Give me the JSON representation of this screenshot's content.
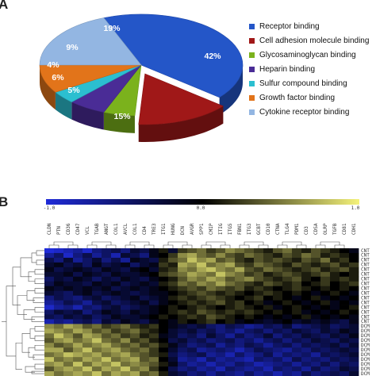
{
  "panels": {
    "a": "A",
    "b": "B"
  },
  "chart_data": [
    {
      "type": "pie",
      "title": "",
      "slices": [
        {
          "label": "Receptor binding",
          "value": 42,
          "pct_label": "42%",
          "color": "#2456c8"
        },
        {
          "label": "Cell adhesion molecule binding",
          "value": 15,
          "pct_label": "15%",
          "color": "#a01818"
        },
        {
          "label": "Glycosaminoglycan binding",
          "value": 5,
          "pct_label": "5%",
          "color": "#7bb21c"
        },
        {
          "label": "Heparin binding",
          "value": 6,
          "pct_label": "6%",
          "color": "#4a2c96"
        },
        {
          "label": "Sulfur compound binding",
          "value": 4,
          "pct_label": "4%",
          "color": "#2bbfd0"
        },
        {
          "label": "Growth factor binding",
          "value": 9,
          "pct_label": "9%",
          "color": "#e2741a"
        },
        {
          "label": "Cytokine receptor binding",
          "value": 19,
          "pct_label": "19%",
          "color": "#93b6e2"
        }
      ],
      "legend_position": "right"
    },
    {
      "type": "heatmap",
      "colorbar": {
        "ticks": [
          "-1.0",
          "0.0",
          "1.0"
        ],
        "colors": [
          "#1f2bd8",
          "#000000",
          "#f4f27a"
        ]
      },
      "columns": [
        "CLDN",
        "PTN",
        "CD36",
        "CD47",
        "VCL",
        "TGAB",
        "ANGT",
        "COL1",
        "AVCL",
        "COL1",
        "CD4",
        "TRE3",
        "ITG1",
        "HUNG",
        "DCN",
        "AVGR",
        "SPP1",
        "CMIP",
        "ITIG",
        "ITG5",
        "FBN1",
        "ITG3",
        "GCBT",
        "CD10",
        "CTNA",
        "TLG4",
        "PDM1",
        "CD3",
        "CDSA",
        "OLRP",
        "TGFB",
        "CD81",
        "CDH1"
      ],
      "row_groups": [
        "CNT",
        "CNT",
        "CNT",
        "CNT",
        "CNT",
        "CNT",
        "CNT",
        "CNT",
        "CNT",
        "CNT",
        "CNT",
        "CNT",
        "CNT",
        "CNT",
        "CNT",
        "CNT",
        "DCM",
        "DCM",
        "DCM",
        "DCM",
        "DCM",
        "DCM",
        "DCM",
        "DCM",
        "DCM",
        "DCM",
        "DCM"
      ],
      "values": [
        [
          -0.9,
          -0.8,
          -0.7,
          -0.6,
          -0.8,
          -0.5,
          -0.4,
          -0.3,
          -0.5,
          -0.2,
          -0.3,
          -0.1,
          0.1,
          -0.2,
          0.2,
          0.3,
          0.4,
          0.2,
          0.3,
          0.5,
          0.4,
          0.3,
          0.2,
          0.1,
          0.3,
          0.4,
          0.2,
          0.1,
          0.3,
          0.2,
          0.1,
          0.0,
          -0.1
        ],
        [
          -0.6,
          -0.4,
          -0.8,
          -0.5,
          -0.3,
          -0.6,
          -0.4,
          -0.7,
          -0.2,
          -0.3,
          -0.5,
          -0.1,
          0.0,
          0.2,
          0.5,
          0.6,
          0.4,
          0.3,
          0.5,
          0.3,
          0.2,
          0.4,
          0.3,
          0.2,
          0.1,
          0.3,
          0.2,
          0.4,
          0.3,
          0.1,
          0.2,
          0.1,
          0.0
        ],
        [
          -0.3,
          -0.5,
          -0.2,
          -0.6,
          -0.4,
          -0.2,
          -0.5,
          -0.3,
          -0.6,
          -0.1,
          -0.2,
          -0.3,
          0.1,
          0.3,
          0.4,
          0.7,
          0.5,
          0.6,
          0.3,
          0.4,
          0.2,
          0.1,
          0.3,
          0.2,
          0.3,
          0.2,
          0.1,
          0.3,
          0.2,
          0.4,
          0.1,
          0.2,
          0.0
        ],
        [
          -0.2,
          -0.1,
          -0.3,
          -0.2,
          -0.4,
          -0.1,
          -0.3,
          -0.2,
          -0.1,
          -0.4,
          -0.2,
          -0.1,
          0.2,
          0.1,
          0.6,
          0.5,
          0.7,
          0.4,
          0.5,
          0.6,
          0.3,
          0.2,
          0.4,
          0.3,
          0.2,
          0.1,
          0.3,
          0.2,
          0.1,
          0.2,
          0.3,
          0.1,
          0.2
        ],
        [
          -0.1,
          -0.3,
          -0.2,
          -0.1,
          -0.2,
          -0.3,
          -0.1,
          -0.2,
          -0.3,
          -0.1,
          0.0,
          -0.2,
          0.1,
          0.2,
          0.5,
          0.4,
          0.6,
          0.7,
          0.5,
          0.4,
          0.6,
          0.3,
          0.2,
          0.4,
          0.3,
          0.2,
          0.1,
          0.2,
          0.3,
          0.1,
          0.2,
          0.3,
          0.1
        ],
        [
          -0.2,
          -0.2,
          -0.1,
          -0.3,
          -0.1,
          -0.2,
          -0.3,
          -0.1,
          -0.2,
          -0.2,
          -0.1,
          0.0,
          0.2,
          0.3,
          0.4,
          0.6,
          0.5,
          0.4,
          0.7,
          0.5,
          0.4,
          0.2,
          0.3,
          0.1,
          0.2,
          0.3,
          0.2,
          0.1,
          0.2,
          0.3,
          0.1,
          0.0,
          0.1
        ],
        [
          -0.4,
          -0.2,
          -0.3,
          -0.1,
          -0.2,
          -0.4,
          -0.2,
          -0.3,
          -0.1,
          -0.2,
          -0.3,
          -0.1,
          0.0,
          0.1,
          0.3,
          0.5,
          0.4,
          0.6,
          0.5,
          0.3,
          0.4,
          0.5,
          0.3,
          0.2,
          0.1,
          0.2,
          0.3,
          0.1,
          0.0,
          0.2,
          0.1,
          0.2,
          0.1
        ],
        [
          -0.3,
          -0.1,
          -0.2,
          -0.2,
          -0.3,
          -0.1,
          -0.2,
          -0.1,
          -0.3,
          -0.2,
          -0.1,
          -0.2,
          0.1,
          0.2,
          0.4,
          0.3,
          0.5,
          0.4,
          0.6,
          0.4,
          0.3,
          0.2,
          0.1,
          0.3,
          0.2,
          0.1,
          0.2,
          0.0,
          0.1,
          0.2,
          0.0,
          0.1,
          0.2
        ],
        [
          -0.1,
          -0.2,
          -0.1,
          -0.2,
          -0.1,
          -0.2,
          -0.1,
          -0.3,
          -0.2,
          -0.1,
          -0.2,
          -0.1,
          0.0,
          0.1,
          0.2,
          0.3,
          0.2,
          0.4,
          0.3,
          0.2,
          0.3,
          0.1,
          0.2,
          0.1,
          0.0,
          0.1,
          0.2,
          0.1,
          0.0,
          0.1,
          0.0,
          0.1,
          0.0
        ],
        [
          -0.2,
          -0.3,
          -0.4,
          -0.2,
          -0.1,
          -0.3,
          -0.2,
          -0.1,
          -0.2,
          -0.3,
          -0.2,
          -0.1,
          -0.1,
          0.0,
          0.1,
          0.2,
          0.3,
          0.2,
          0.1,
          0.2,
          0.1,
          0.0,
          0.1,
          0.2,
          0.1,
          0.0,
          0.1,
          0.0,
          -0.1,
          0.0,
          0.1,
          0.0,
          -0.1
        ],
        [
          -0.5,
          -0.3,
          -0.4,
          -0.5,
          -0.3,
          -0.2,
          -0.4,
          -0.3,
          -0.2,
          -0.1,
          -0.3,
          -0.2,
          -0.1,
          0.1,
          0.2,
          0.1,
          0.2,
          0.3,
          0.2,
          0.1,
          0.0,
          0.1,
          0.2,
          0.0,
          0.1,
          0.0,
          -0.1,
          0.0,
          0.1,
          -0.1,
          0.0,
          -0.1,
          0.0
        ],
        [
          -0.6,
          -0.5,
          -0.3,
          -0.4,
          -0.6,
          -0.3,
          -0.2,
          -0.4,
          -0.3,
          -0.2,
          -0.1,
          -0.3,
          -0.1,
          0.0,
          0.1,
          0.2,
          0.1,
          0.2,
          0.3,
          0.1,
          0.2,
          0.0,
          0.1,
          -0.1,
          0.0,
          0.1,
          0.0,
          -0.1,
          0.0,
          0.1,
          -0.1,
          0.0,
          -0.1
        ],
        [
          -0.8,
          -0.6,
          -0.5,
          -0.7,
          -0.4,
          -0.5,
          -0.3,
          -0.2,
          -0.4,
          -0.3,
          -0.2,
          -0.1,
          0.0,
          0.1,
          0.0,
          0.1,
          0.2,
          0.1,
          0.0,
          0.1,
          0.2,
          0.1,
          0.0,
          0.1,
          -0.1,
          0.0,
          0.1,
          0.0,
          -0.1,
          0.0,
          -0.1,
          0.0,
          0.1
        ],
        [
          -0.4,
          -0.2,
          -0.3,
          -0.2,
          -0.5,
          -0.3,
          -0.1,
          -0.2,
          -0.3,
          -0.1,
          -0.2,
          -0.1,
          0.0,
          0.1,
          0.2,
          0.1,
          0.3,
          0.2,
          0.1,
          0.2,
          0.1,
          0.2,
          0.1,
          0.0,
          0.1,
          0.0,
          0.1,
          -0.1,
          0.0,
          -0.1,
          0.0,
          0.1,
          0.0
        ],
        [
          -0.3,
          -0.4,
          -0.2,
          -0.3,
          -0.2,
          -0.4,
          -0.3,
          -0.1,
          -0.2,
          -0.2,
          -0.1,
          0.0,
          0.1,
          0.0,
          0.1,
          0.2,
          0.1,
          0.3,
          0.2,
          0.1,
          0.0,
          0.1,
          0.0,
          -0.1,
          0.0,
          -0.1,
          0.0,
          0.1,
          -0.1,
          0.0,
          -0.1,
          0.0,
          -0.1
        ],
        [
          -0.7,
          -0.5,
          -0.6,
          -0.4,
          -0.3,
          -0.5,
          -0.2,
          -0.3,
          -0.1,
          -0.2,
          -0.3,
          -0.1,
          0.0,
          -0.1,
          0.1,
          0.0,
          0.1,
          0.2,
          0.0,
          0.1,
          -0.1,
          0.0,
          -0.1,
          -0.2,
          -0.1,
          0.0,
          -0.2,
          -0.1,
          -0.2,
          -0.1,
          -0.2,
          -0.3,
          -0.1
        ],
        [
          0.5,
          0.4,
          0.6,
          0.5,
          0.3,
          0.4,
          0.2,
          0.3,
          0.4,
          0.2,
          0.1,
          0.2,
          0.0,
          -0.1,
          -0.2,
          -0.3,
          -0.2,
          -0.4,
          -0.5,
          -0.3,
          -0.4,
          -0.6,
          -0.5,
          -0.3,
          -0.4,
          -0.2,
          -0.5,
          -0.4,
          -0.3,
          -0.2,
          -0.4,
          -0.3,
          -0.2
        ],
        [
          0.6,
          0.5,
          0.4,
          0.6,
          0.5,
          0.3,
          0.4,
          0.2,
          0.3,
          0.4,
          0.2,
          0.1,
          0.0,
          -0.2,
          -0.3,
          -0.2,
          -0.4,
          -0.3,
          -0.5,
          -0.4,
          -0.6,
          -0.4,
          -0.3,
          -0.5,
          -0.3,
          -0.4,
          -0.2,
          -0.3,
          -0.4,
          -0.2,
          -0.3,
          -0.1,
          -0.2
        ],
        [
          0.4,
          0.7,
          0.5,
          0.3,
          0.6,
          0.5,
          0.3,
          0.4,
          0.2,
          0.3,
          0.1,
          0.2,
          -0.1,
          -0.2,
          -0.4,
          -0.3,
          -0.5,
          -0.2,
          -0.4,
          -0.6,
          -0.3,
          -0.5,
          -0.4,
          -0.2,
          -0.5,
          -0.3,
          -0.4,
          -0.2,
          -0.3,
          -0.4,
          -0.2,
          -0.3,
          -0.1
        ],
        [
          0.3,
          0.5,
          0.6,
          0.4,
          0.5,
          0.7,
          0.4,
          0.3,
          0.5,
          0.2,
          0.3,
          0.1,
          0.0,
          -0.3,
          -0.2,
          -0.4,
          -0.3,
          -0.5,
          -0.4,
          -0.3,
          -0.5,
          -0.4,
          -0.6,
          -0.4,
          -0.3,
          -0.5,
          -0.3,
          -0.4,
          -0.2,
          -0.3,
          -0.4,
          -0.2,
          -0.3
        ],
        [
          0.5,
          0.3,
          0.4,
          0.6,
          0.4,
          0.5,
          0.6,
          0.4,
          0.3,
          0.4,
          0.2,
          0.3,
          0.1,
          -0.1,
          -0.3,
          -0.5,
          -0.4,
          -0.3,
          -0.6,
          -0.4,
          -0.5,
          -0.3,
          -0.4,
          -0.6,
          -0.4,
          -0.3,
          -0.5,
          -0.3,
          -0.4,
          -0.3,
          -0.2,
          -0.4,
          -0.2
        ],
        [
          0.6,
          0.6,
          0.3,
          0.5,
          0.7,
          0.4,
          0.5,
          0.6,
          0.4,
          0.3,
          0.4,
          0.2,
          0.0,
          -0.2,
          -0.4,
          -0.3,
          -0.6,
          -0.5,
          -0.4,
          -0.5,
          -0.7,
          -0.5,
          -0.3,
          -0.4,
          -0.5,
          -0.6,
          -0.4,
          -0.5,
          -0.3,
          -0.4,
          -0.3,
          -0.2,
          -0.3
        ],
        [
          0.4,
          0.5,
          0.7,
          0.6,
          0.5,
          0.6,
          0.4,
          0.5,
          0.6,
          0.4,
          0.3,
          0.2,
          0.1,
          -0.3,
          -0.5,
          -0.4,
          -0.3,
          -0.6,
          -0.5,
          -0.7,
          -0.4,
          -0.6,
          -0.5,
          -0.3,
          -0.6,
          -0.4,
          -0.5,
          -0.4,
          -0.6,
          -0.3,
          -0.4,
          -0.3,
          -0.2
        ],
        [
          0.7,
          0.4,
          0.5,
          0.4,
          0.6,
          0.5,
          0.7,
          0.4,
          0.5,
          0.6,
          0.3,
          0.4,
          0.0,
          -0.2,
          -0.6,
          -0.5,
          -0.7,
          -0.4,
          -0.6,
          -0.5,
          -0.6,
          -0.7,
          -0.4,
          -0.5,
          -0.4,
          -0.6,
          -0.3,
          -0.5,
          -0.4,
          -0.5,
          -0.3,
          -0.4,
          -0.3
        ],
        [
          0.5,
          0.6,
          0.4,
          0.7,
          0.4,
          0.6,
          0.5,
          0.7,
          0.4,
          0.5,
          0.4,
          0.3,
          0.1,
          -0.1,
          -0.4,
          -0.6,
          -0.5,
          -0.7,
          -0.5,
          -0.6,
          -0.4,
          -0.5,
          -0.7,
          -0.6,
          -0.5,
          -0.4,
          -0.6,
          -0.4,
          -0.5,
          -0.3,
          -0.5,
          -0.3,
          -0.4
        ],
        [
          0.3,
          0.5,
          0.6,
          0.5,
          0.7,
          0.4,
          0.6,
          0.5,
          0.7,
          0.4,
          0.5,
          0.2,
          0.0,
          -0.3,
          -0.5,
          -0.4,
          -0.6,
          -0.5,
          -0.7,
          -0.4,
          -0.5,
          -0.6,
          -0.5,
          -0.7,
          -0.4,
          -0.5,
          -0.4,
          -0.6,
          -0.3,
          -0.5,
          -0.4,
          -0.2,
          -0.3
        ],
        [
          0.6,
          0.4,
          0.5,
          0.6,
          0.5,
          0.7,
          0.4,
          0.6,
          0.5,
          0.6,
          0.3,
          0.4,
          0.1,
          -0.2,
          -0.3,
          -0.5,
          -0.4,
          -0.6,
          -0.4,
          -0.5,
          -0.6,
          -0.4,
          -0.6,
          -0.5,
          -0.7,
          -0.5,
          -0.6,
          -0.3,
          -0.5,
          -0.4,
          -0.3,
          -0.4,
          -0.2
        ]
      ]
    }
  ]
}
